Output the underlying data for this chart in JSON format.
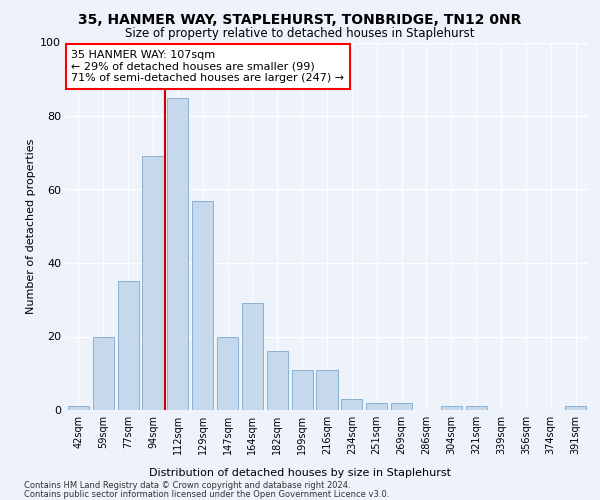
{
  "title": "35, HANMER WAY, STAPLEHURST, TONBRIDGE, TN12 0NR",
  "subtitle": "Size of property relative to detached houses in Staplehurst",
  "xlabel": "Distribution of detached houses by size in Staplehurst",
  "ylabel": "Number of detached properties",
  "bar_color": "#c6d9ec",
  "bar_edge_color": "#8ab0d0",
  "background_color": "#eef2fa",
  "grid_color": "#ffffff",
  "categories": [
    "42sqm",
    "59sqm",
    "77sqm",
    "94sqm",
    "112sqm",
    "129sqm",
    "147sqm",
    "164sqm",
    "182sqm",
    "199sqm",
    "216sqm",
    "234sqm",
    "251sqm",
    "269sqm",
    "286sqm",
    "304sqm",
    "321sqm",
    "339sqm",
    "356sqm",
    "374sqm",
    "391sqm"
  ],
  "values": [
    1,
    20,
    35,
    69,
    85,
    57,
    20,
    29,
    16,
    11,
    11,
    3,
    2,
    2,
    0,
    1,
    1,
    0,
    0,
    0,
    1
  ],
  "vline_color": "#cc0000",
  "vline_x_index": 4,
  "annotation_text": "35 HANMER WAY: 107sqm\n← 29% of detached houses are smaller (99)\n71% of semi-detached houses are larger (247) →",
  "ylim": [
    0,
    100
  ],
  "footnote1": "Contains HM Land Registry data © Crown copyright and database right 2024.",
  "footnote2": "Contains public sector information licensed under the Open Government Licence v3.0."
}
